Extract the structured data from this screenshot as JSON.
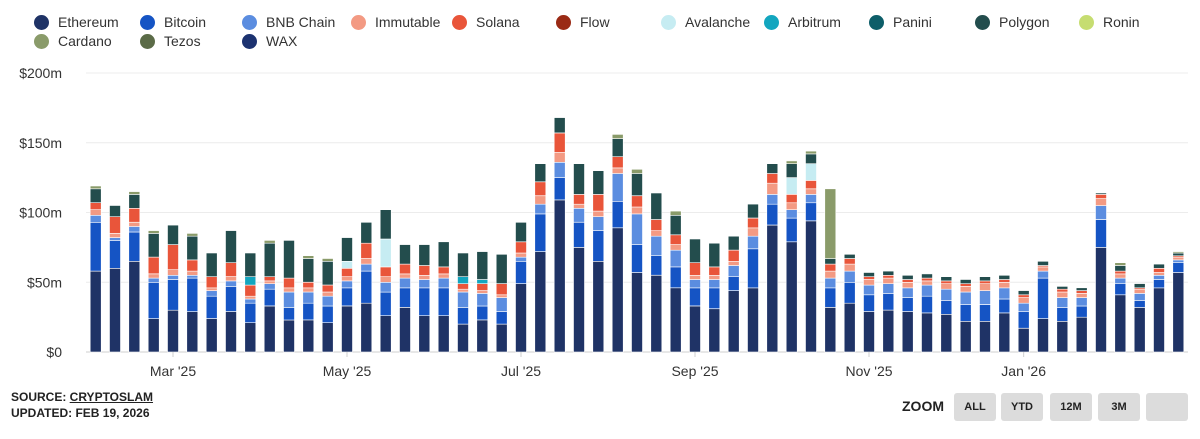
{
  "legend": [
    {
      "name": "Ethereum",
      "color": "#1f3366"
    },
    {
      "name": "Bitcoin",
      "color": "#1554c4"
    },
    {
      "name": "BNB Chain",
      "color": "#5b8de0"
    },
    {
      "name": "Immutable",
      "color": "#f39a83"
    },
    {
      "name": "Solana",
      "color": "#e9553a"
    },
    {
      "name": "Flow",
      "color": "#9a2a15"
    },
    {
      "name": "Avalanche",
      "color": "#c6ecf2"
    },
    {
      "name": "Arbitrum",
      "color": "#13a6bf"
    },
    {
      "name": "Panini",
      "color": "#0d5e69"
    },
    {
      "name": "Polygon",
      "color": "#234d4d"
    },
    {
      "name": "Ronin",
      "color": "#c6dd71"
    },
    {
      "name": "Cardano",
      "color": "#8a9b6a"
    },
    {
      "name": "Tezos",
      "color": "#5b6b47"
    },
    {
      "name": "WAX",
      "color": "#1c3270"
    }
  ],
  "chart_data": {
    "type": "bar",
    "stacked": true,
    "unit": "$m",
    "y_ticks": [
      "$0",
      "$50m",
      "$100m",
      "$150m",
      "$200m"
    ],
    "ylim": [
      0,
      200
    ],
    "x_labels": [
      {
        "label": "Mar '25",
        "index": 4
      },
      {
        "label": "May '25",
        "index": 13
      },
      {
        "label": "Jul '25",
        "index": 22
      },
      {
        "label": "Sep '25",
        "index": 31
      },
      {
        "label": "Nov '25",
        "index": 40
      },
      {
        "label": "Jan '26",
        "index": 48
      }
    ],
    "stack_order": [
      "Ethereum",
      "Bitcoin",
      "BNB Chain",
      "Immutable",
      "Solana",
      "Flow",
      "Avalanche",
      "Arbitrum",
      "Panini",
      "Polygon",
      "Cardano"
    ],
    "series": [
      {
        "name": "Ethereum",
        "values": [
          58,
          60,
          65,
          24,
          30,
          29,
          24,
          29,
          21,
          33,
          23,
          23,
          21,
          33,
          35,
          26,
          32,
          26,
          26,
          20,
          23,
          20,
          49,
          72,
          109,
          75,
          65,
          89,
          57,
          55,
          46,
          33,
          31,
          44,
          46,
          91,
          79,
          94,
          32,
          35,
          29,
          30,
          29,
          28,
          27,
          22,
          22,
          28,
          17,
          24,
          22,
          25,
          75,
          41,
          32,
          46,
          57
        ]
      },
      {
        "name": "Bitcoin",
        "values": [
          35,
          20,
          21,
          26,
          22,
          24,
          16,
          18,
          14,
          12,
          9,
          12,
          12,
          13,
          23,
          17,
          14,
          20,
          20,
          12,
          10,
          9,
          16,
          27,
          16,
          18,
          22,
          19,
          20,
          14,
          15,
          13,
          15,
          10,
          28,
          15,
          17,
          13,
          14,
          15,
          12,
          12,
          10,
          12,
          10,
          12,
          12,
          10,
          12,
          29,
          10,
          8,
          20,
          8,
          5,
          6,
          7
        ]
      },
      {
        "name": "BNB Chain",
        "values": [
          5,
          2,
          4,
          3,
          3,
          2,
          4,
          4,
          3,
          4,
          11,
          8,
          7,
          5,
          5,
          7,
          7,
          6,
          7,
          11,
          9,
          10,
          3,
          7,
          11,
          10,
          10,
          20,
          22,
          14,
          12,
          6,
          6,
          8,
          9,
          7,
          6,
          6,
          7,
          8,
          7,
          7,
          7,
          8,
          8,
          9,
          10,
          8,
          6,
          5,
          7,
          6,
          10,
          4,
          5,
          3,
          2
        ]
      },
      {
        "name": "Immutable",
        "values": [
          4,
          3,
          3,
          3,
          4,
          3,
          2,
          3,
          2,
          2,
          3,
          3,
          3,
          3,
          4,
          4,
          3,
          3,
          3,
          2,
          2,
          2,
          3,
          6,
          7,
          3,
          4,
          4,
          5,
          4,
          4,
          3,
          3,
          3,
          6,
          8,
          5,
          4,
          5,
          5,
          4,
          4,
          4,
          3,
          4,
          4,
          5,
          4,
          4,
          3,
          4,
          3,
          5,
          3,
          3,
          2,
          2
        ]
      },
      {
        "name": "Solana",
        "values": [
          5,
          12,
          10,
          12,
          18,
          8,
          8,
          10,
          8,
          3,
          7,
          4,
          5,
          6,
          11,
          7,
          7,
          7,
          5,
          4,
          5,
          8,
          8,
          10,
          14,
          7,
          12,
          8,
          8,
          8,
          7,
          9,
          6,
          8,
          7,
          7,
          6,
          6,
          5,
          4,
          2,
          2,
          2,
          2,
          2,
          2,
          2,
          2,
          2,
          1,
          2,
          2,
          3,
          2,
          1,
          3,
          1
        ]
      },
      {
        "name": "Flow",
        "values": [
          0,
          0,
          0,
          0,
          0,
          0,
          0,
          0,
          0,
          0,
          0,
          0,
          0,
          0,
          0,
          0,
          0,
          0,
          0,
          0,
          0,
          0,
          0,
          0,
          0,
          0,
          0,
          0,
          0,
          0,
          0,
          0,
          0,
          0,
          0,
          0,
          0,
          0,
          0,
          0,
          0,
          0,
          0,
          0,
          0,
          0,
          0,
          0,
          0,
          0,
          0,
          0,
          0,
          0,
          0,
          0,
          0
        ]
      },
      {
        "name": "Avalanche",
        "values": [
          0,
          0,
          0,
          0,
          0,
          0,
          0,
          0,
          0,
          0,
          0,
          0,
          0,
          5,
          0,
          20,
          0,
          0,
          0,
          0,
          0,
          0,
          0,
          0,
          0,
          0,
          0,
          0,
          0,
          0,
          0,
          0,
          0,
          0,
          0,
          0,
          12,
          12,
          0,
          0,
          0,
          0,
          0,
          0,
          0,
          0,
          0,
          0,
          0,
          0,
          0,
          0,
          0,
          0,
          0,
          0,
          0
        ]
      },
      {
        "name": "Arbitrum",
        "values": [
          0,
          0,
          0,
          0,
          0,
          0,
          0,
          0,
          6,
          0,
          0,
          0,
          0,
          0,
          0,
          0,
          0,
          0,
          0,
          5,
          3,
          0,
          0,
          0,
          0,
          0,
          0,
          0,
          0,
          0,
          0,
          0,
          0,
          0,
          0,
          0,
          0,
          0,
          0,
          0,
          0,
          0,
          0,
          0,
          0,
          0,
          0,
          0,
          0,
          0,
          0,
          0,
          0,
          0,
          0,
          0,
          0
        ]
      },
      {
        "name": "Panini",
        "values": [
          0,
          0,
          0,
          0,
          0,
          0,
          0,
          0,
          0,
          0,
          0,
          0,
          0,
          0,
          0,
          0,
          0,
          0,
          0,
          0,
          0,
          0,
          0,
          0,
          0,
          0,
          0,
          0,
          0,
          0,
          0,
          0,
          0,
          0,
          0,
          0,
          0,
          0,
          0,
          0,
          0,
          0,
          0,
          0,
          0,
          0,
          0,
          0,
          0,
          0,
          0,
          0,
          0,
          0,
          0,
          0,
          0
        ]
      },
      {
        "name": "Polygon",
        "values": [
          10,
          8,
          10,
          17,
          14,
          17,
          17,
          23,
          17,
          24,
          27,
          17,
          17,
          17,
          15,
          21,
          14,
          15,
          18,
          17,
          20,
          21,
          14,
          13,
          11,
          22,
          17,
          13,
          16,
          19,
          14,
          17,
          17,
          10,
          10,
          7,
          10,
          7,
          4,
          3,
          3,
          3,
          3,
          3,
          3,
          3,
          3,
          3,
          3,
          3,
          2,
          2,
          1,
          4,
          3,
          3,
          2
        ]
      },
      {
        "name": "Cardano",
        "values": [
          2,
          0,
          2,
          2,
          0,
          2,
          0,
          0,
          0,
          2,
          0,
          2,
          2,
          0,
          0,
          0,
          0,
          0,
          0,
          0,
          0,
          0,
          0,
          0,
          0,
          0,
          0,
          3,
          3,
          0,
          3,
          0,
          0,
          0,
          0,
          0,
          2,
          2,
          50,
          0,
          0,
          0,
          0,
          0,
          0,
          0,
          0,
          0,
          0,
          0,
          0,
          0,
          0,
          2,
          0,
          0,
          1
        ]
      }
    ],
    "grid": true,
    "legend_position": "top"
  },
  "footer": {
    "source_prefix": "SOURCE: ",
    "source_link": "CRYPTOSLAM",
    "updated": "UPDATED: FEB 19, 2026"
  },
  "zoom": {
    "label": "ZOOM",
    "buttons": [
      "ALL",
      "YTD",
      "12M",
      "3M",
      ""
    ]
  }
}
